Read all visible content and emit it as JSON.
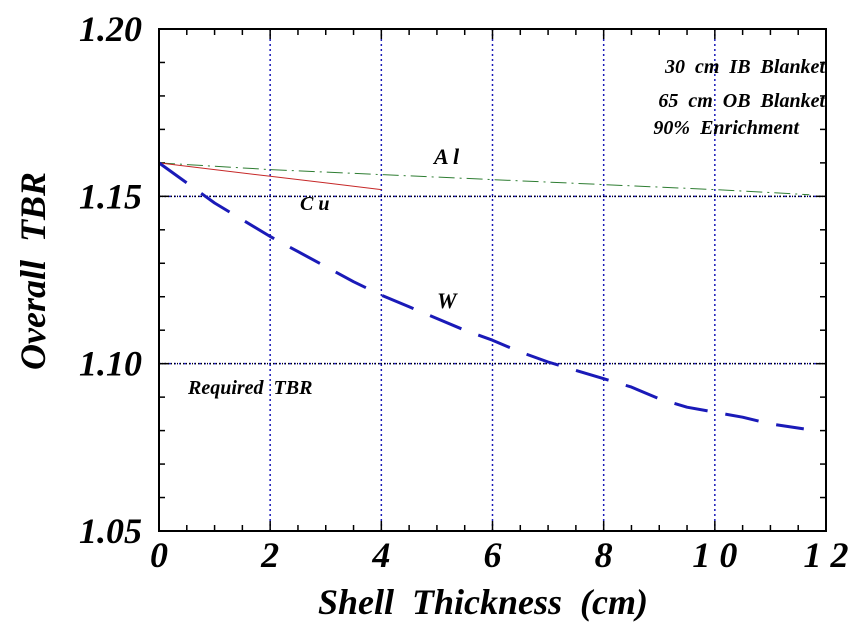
{
  "chart_data": {
    "type": "line",
    "xlabel": "Shell  Thickness  (cm)",
    "ylabel": "Overall  TBR",
    "xlim": [
      0,
      12
    ],
    "ylim": [
      1.05,
      1.2
    ],
    "x_ticks": [
      0,
      2,
      4,
      6,
      8,
      10,
      12
    ],
    "x_tick_labels": [
      "0",
      "2",
      "4",
      "6",
      "8",
      "1 0",
      "1 2"
    ],
    "y_ticks": [
      1.05,
      1.1,
      1.15,
      1.2
    ],
    "y_tick_labels": [
      "1.05",
      "1.10",
      "1.15",
      "1.20"
    ],
    "grid": "dotted at major ticks",
    "annotation_lines": [
      "30  cm  IB  Blanket",
      "65  cm  OB  Blanket",
      "90%  Enrichment"
    ],
    "reference_line": {
      "y": 1.1,
      "label": "Required  TBR",
      "color": "#000000"
    },
    "series": [
      {
        "name": "A l",
        "color": "#2e7d32",
        "style": "dashdot",
        "width": 1,
        "x": [
          0,
          2,
          4,
          6,
          8,
          10,
          11.7
        ],
        "y": [
          1.16,
          1.158,
          1.1565,
          1.155,
          1.1535,
          1.152,
          1.1505
        ]
      },
      {
        "name": "C u",
        "color": "#c62828",
        "style": "solid",
        "width": 1,
        "x": [
          0,
          1,
          2,
          3,
          4
        ],
        "y": [
          1.16,
          1.158,
          1.156,
          1.154,
          1.152
        ]
      },
      {
        "name": "W",
        "color": "#1a1ab8",
        "style": "longdash",
        "width": 3,
        "x": [
          0,
          0.5,
          1,
          1.5,
          2,
          2.5,
          3,
          3.5,
          4,
          4.5,
          5,
          5.5,
          6,
          6.5,
          7,
          7.5,
          8,
          8.5,
          9,
          9.5,
          10,
          10.5,
          11,
          11.6
        ],
        "y": [
          1.16,
          1.154,
          1.148,
          1.143,
          1.138,
          1.1335,
          1.129,
          1.1245,
          1.1205,
          1.117,
          1.1135,
          1.11,
          1.107,
          1.1035,
          1.1005,
          1.098,
          1.0955,
          1.093,
          1.0895,
          1.087,
          1.0855,
          1.084,
          1.082,
          1.0805
        ]
      }
    ]
  }
}
